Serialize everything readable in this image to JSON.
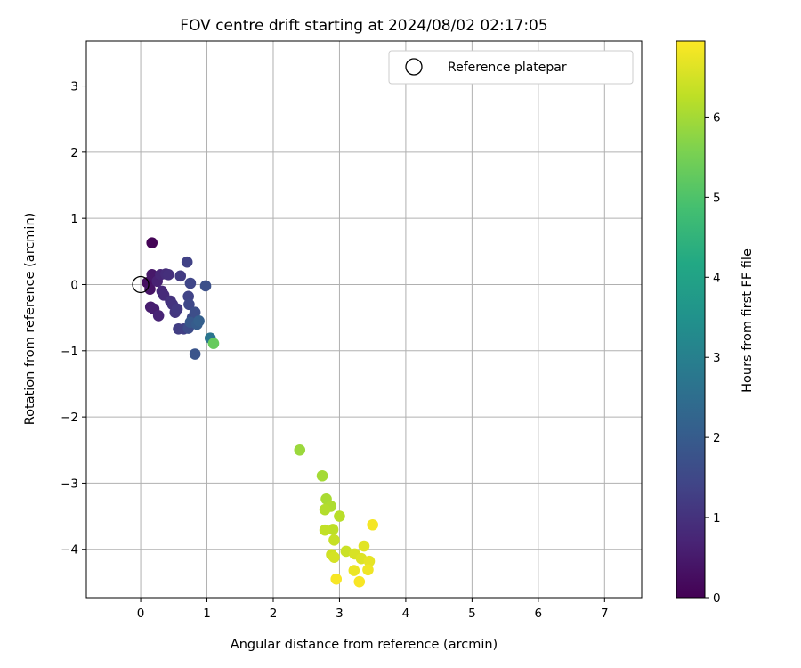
{
  "chart_data": {
    "type": "scatter",
    "title": "FOV centre drift starting at 2024/08/02 02:17:05",
    "xlabel": "Angular distance from reference (arcmin)",
    "ylabel": "Rotation from reference (arcmin)",
    "xlim": [
      -0.82,
      7.56
    ],
    "ylim": [
      -4.73,
      3.68
    ],
    "xticks": [
      0,
      1,
      2,
      3,
      4,
      5,
      6,
      7
    ],
    "yticks": [
      -4,
      -3,
      -2,
      -1,
      0,
      1,
      2,
      3
    ],
    "grid": true,
    "legend": {
      "placement": "top-right",
      "entries": [
        "Reference platepar"
      ]
    },
    "colorbar": {
      "label": "Hours from first FF file",
      "colormap": "viridis",
      "range": [
        0,
        6.95
      ],
      "ticks": [
        0,
        1,
        2,
        3,
        4,
        5,
        6
      ]
    },
    "reference_point": {
      "x": 0,
      "y": 0,
      "label": "Reference platepar"
    },
    "points": [
      {
        "x": 0.17,
        "y": 0.63,
        "t": 0.05
      },
      {
        "x": 0.1,
        "y": 0.03,
        "t": 0.25
      },
      {
        "x": 0.14,
        "y": -0.07,
        "t": 0.35
      },
      {
        "x": 0.17,
        "y": 0.15,
        "t": 0.45
      },
      {
        "x": 0.15,
        "y": -0.34,
        "t": 0.55
      },
      {
        "x": 0.2,
        "y": -0.37,
        "t": 0.6
      },
      {
        "x": 0.25,
        "y": 0.05,
        "t": 0.65
      },
      {
        "x": 0.27,
        "y": -0.47,
        "t": 0.7
      },
      {
        "x": 0.3,
        "y": 0.15,
        "t": 0.75
      },
      {
        "x": 0.32,
        "y": -0.1,
        "t": 0.8
      },
      {
        "x": 0.35,
        "y": -0.16,
        "t": 0.85
      },
      {
        "x": 0.38,
        "y": 0.16,
        "t": 0.9
      },
      {
        "x": 0.42,
        "y": 0.15,
        "t": 0.95
      },
      {
        "x": 0.45,
        "y": -0.25,
        "t": 1.0
      },
      {
        "x": 0.48,
        "y": -0.3,
        "t": 1.05
      },
      {
        "x": 0.52,
        "y": -0.42,
        "t": 1.1
      },
      {
        "x": 0.55,
        "y": -0.37,
        "t": 1.15
      },
      {
        "x": 0.6,
        "y": 0.13,
        "t": 1.2
      },
      {
        "x": 0.57,
        "y": -0.67,
        "t": 1.25
      },
      {
        "x": 0.65,
        "y": -0.67,
        "t": 1.3
      },
      {
        "x": 0.7,
        "y": 0.34,
        "t": 1.35
      },
      {
        "x": 0.72,
        "y": -0.18,
        "t": 1.4
      },
      {
        "x": 0.75,
        "y": 0.02,
        "t": 1.45
      },
      {
        "x": 0.73,
        "y": -0.3,
        "t": 1.5
      },
      {
        "x": 0.78,
        "y": -0.5,
        "t": 1.55
      },
      {
        "x": 0.72,
        "y": -0.66,
        "t": 1.6
      },
      {
        "x": 0.82,
        "y": -0.42,
        "t": 1.65
      },
      {
        "x": 0.98,
        "y": -0.02,
        "t": 1.7
      },
      {
        "x": 0.82,
        "y": -1.05,
        "t": 1.8
      },
      {
        "x": 0.75,
        "y": -0.57,
        "t": 1.9
      },
      {
        "x": 0.85,
        "y": -0.6,
        "t": 2.0
      },
      {
        "x": 0.88,
        "y": -0.55,
        "t": 2.1
      },
      {
        "x": 1.05,
        "y": -0.81,
        "t": 2.7
      },
      {
        "x": 1.1,
        "y": -0.89,
        "t": 5.3
      },
      {
        "x": 2.4,
        "y": -2.5,
        "t": 5.9
      },
      {
        "x": 2.74,
        "y": -2.89,
        "t": 6.0
      },
      {
        "x": 2.8,
        "y": -3.24,
        "t": 6.05
      },
      {
        "x": 2.87,
        "y": -3.35,
        "t": 6.1
      },
      {
        "x": 2.78,
        "y": -3.4,
        "t": 6.15
      },
      {
        "x": 3.0,
        "y": -3.5,
        "t": 6.2
      },
      {
        "x": 2.9,
        "y": -3.7,
        "t": 6.25
      },
      {
        "x": 2.78,
        "y": -3.71,
        "t": 6.3
      },
      {
        "x": 2.92,
        "y": -3.86,
        "t": 6.35
      },
      {
        "x": 3.1,
        "y": -4.03,
        "t": 6.4
      },
      {
        "x": 2.88,
        "y": -4.08,
        "t": 6.45
      },
      {
        "x": 2.92,
        "y": -4.12,
        "t": 6.5
      },
      {
        "x": 3.23,
        "y": -4.07,
        "t": 6.55
      },
      {
        "x": 3.33,
        "y": -4.14,
        "t": 6.6
      },
      {
        "x": 3.37,
        "y": -3.95,
        "t": 6.65
      },
      {
        "x": 3.45,
        "y": -4.18,
        "t": 6.7
      },
      {
        "x": 3.22,
        "y": -4.32,
        "t": 6.75
      },
      {
        "x": 3.43,
        "y": -4.31,
        "t": 6.8
      },
      {
        "x": 3.5,
        "y": -3.63,
        "t": 6.85
      },
      {
        "x": 2.95,
        "y": -4.45,
        "t": 6.88
      },
      {
        "x": 3.3,
        "y": -4.49,
        "t": 6.9
      }
    ]
  }
}
